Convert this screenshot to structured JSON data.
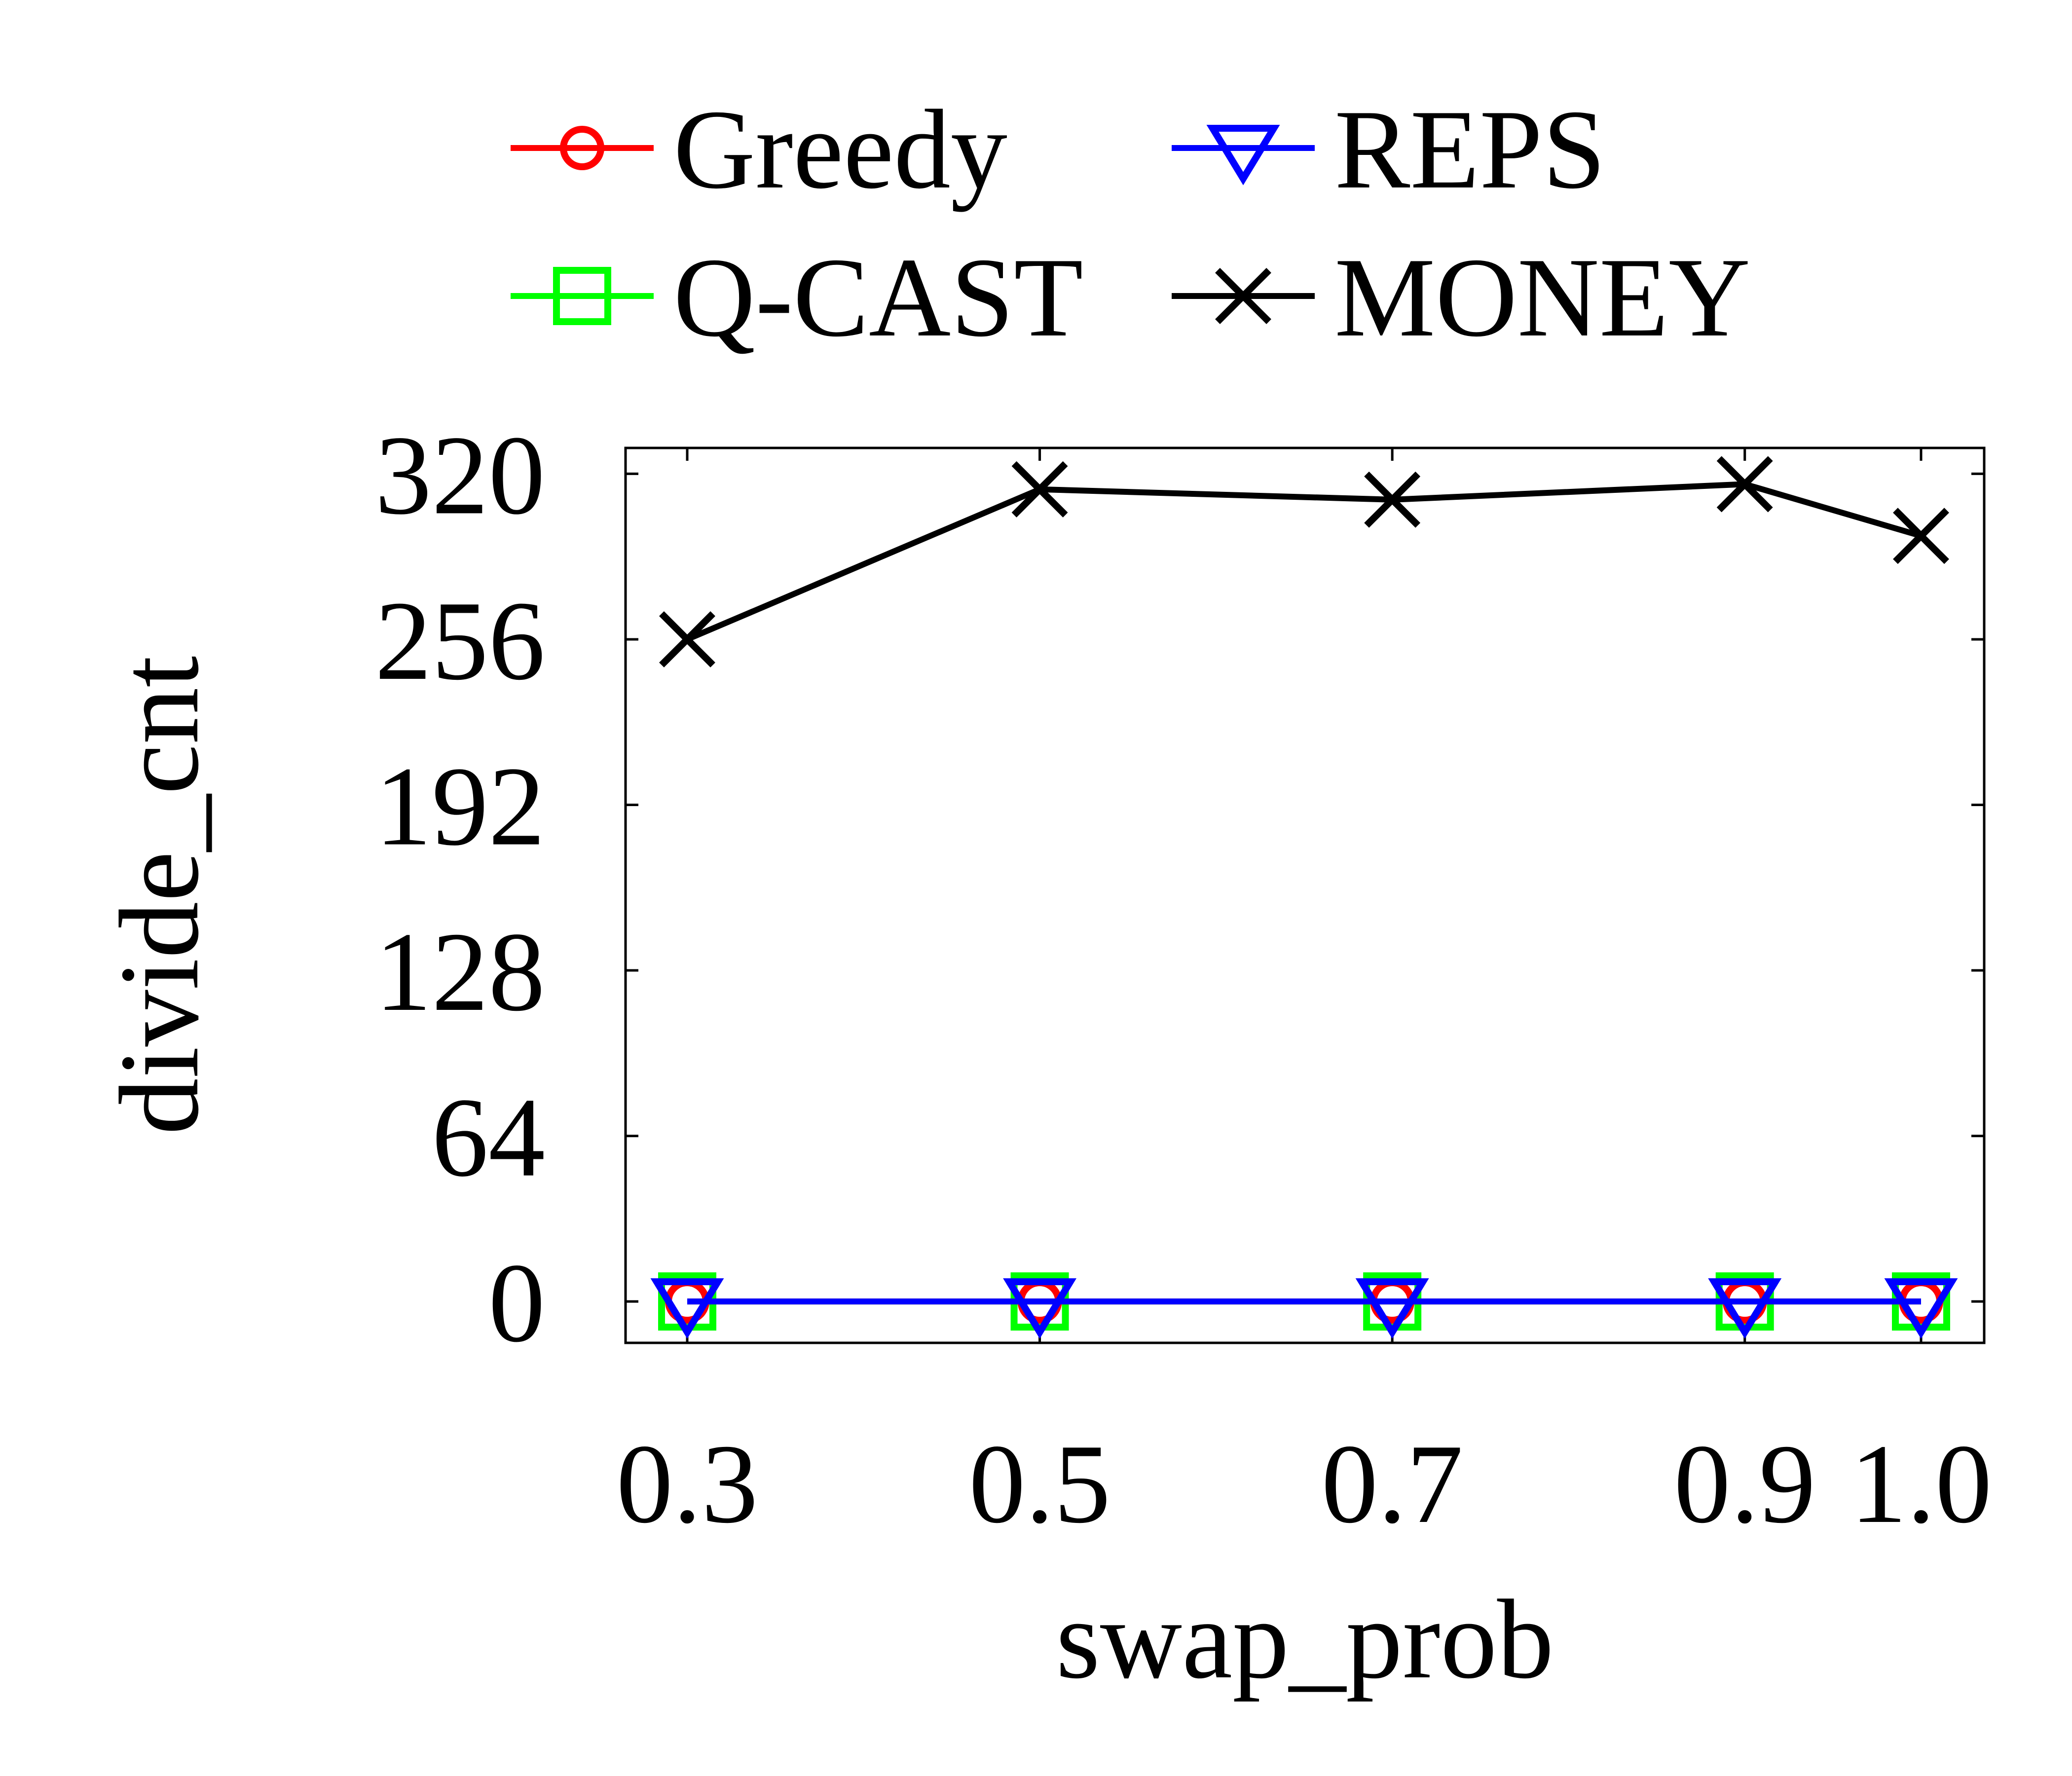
{
  "chart_data": {
    "type": "line",
    "title": "",
    "xlabel": "swap_prob",
    "ylabel": "divide_cnt",
    "x": [
      0.3,
      0.5,
      0.7,
      0.9,
      1.0
    ],
    "x_tick_labels": [
      "0.3",
      "0.5",
      "0.7",
      "0.9",
      "1.0"
    ],
    "yticks": [
      0,
      64,
      128,
      192,
      256,
      320
    ],
    "y_tick_labels": [
      "0",
      "64",
      "128",
      "192",
      "256",
      "320"
    ],
    "ylim": [
      -16,
      330
    ],
    "grid": false,
    "legend_position": "top",
    "series": [
      {
        "name": "Greedy",
        "marker": "circle",
        "color": "#ff0000",
        "values": [
          0,
          0,
          0,
          0,
          0
        ]
      },
      {
        "name": "REPS",
        "marker": "triangle-down",
        "color": "#0000ff",
        "values": [
          0,
          0,
          0,
          0,
          0
        ]
      },
      {
        "name": "Q-CAST",
        "marker": "square",
        "color": "#00ff00",
        "values": [
          0,
          0,
          0,
          0,
          0
        ]
      },
      {
        "name": "MONEY",
        "marker": "x",
        "color": "#000000",
        "values": [
          256,
          314,
          310,
          316,
          296
        ]
      }
    ]
  }
}
